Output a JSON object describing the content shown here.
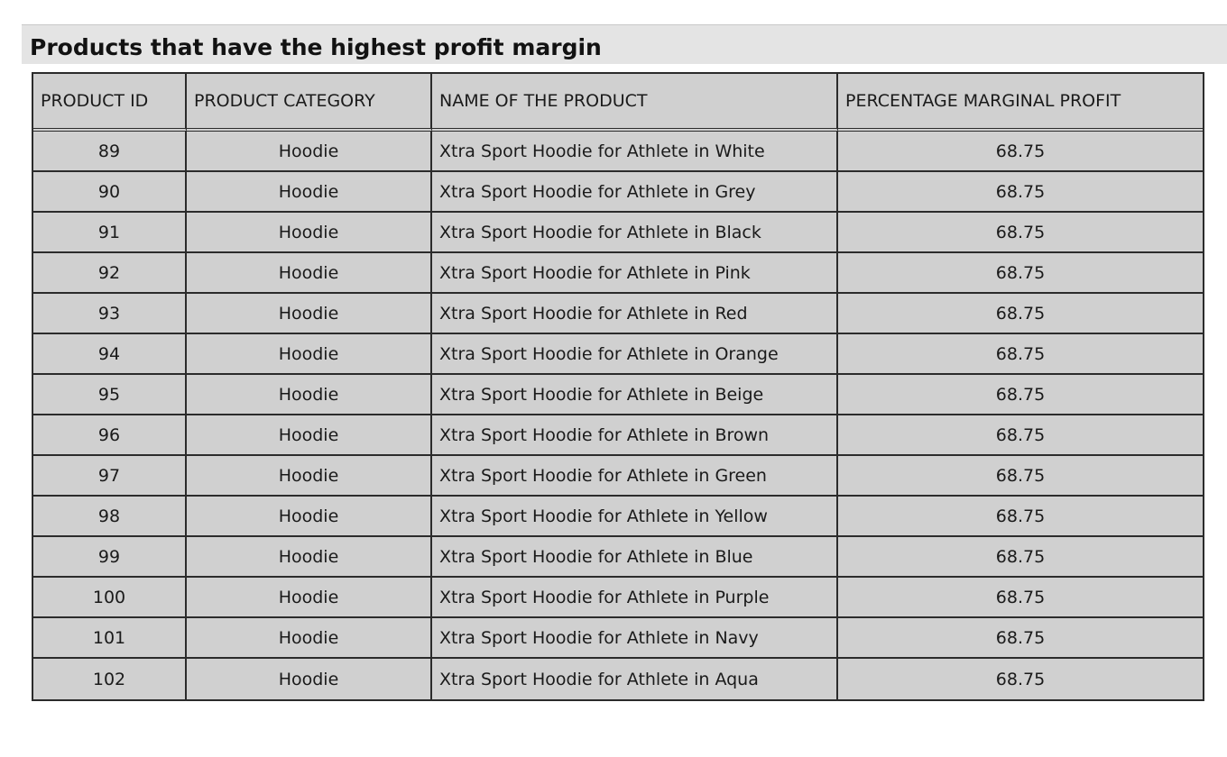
{
  "title": "Products that have the highest profit margin",
  "table": {
    "headers": [
      "PRODUCT ID",
      "PRODUCT CATEGORY",
      "NAME OF THE PRODUCT",
      "PERCENTAGE MARGINAL PROFIT"
    ],
    "rows": [
      [
        "89",
        "Hoodie",
        "Xtra Sport Hoodie for Athlete in White",
        "68.75"
      ],
      [
        "90",
        "Hoodie",
        "Xtra Sport Hoodie for Athlete in Grey",
        "68.75"
      ],
      [
        "91",
        "Hoodie",
        "Xtra Sport Hoodie for Athlete in Black",
        "68.75"
      ],
      [
        "92",
        "Hoodie",
        "Xtra Sport Hoodie for Athlete in Pink",
        "68.75"
      ],
      [
        "93",
        "Hoodie",
        "Xtra Sport Hoodie for Athlete in Red",
        "68.75"
      ],
      [
        "94",
        "Hoodie",
        "Xtra Sport Hoodie for Athlete in Orange",
        "68.75"
      ],
      [
        "95",
        "Hoodie",
        "Xtra Sport Hoodie for Athlete in Beige",
        "68.75"
      ],
      [
        "96",
        "Hoodie",
        "Xtra Sport Hoodie for Athlete in Brown",
        "68.75"
      ],
      [
        "97",
        "Hoodie",
        "Xtra Sport Hoodie for Athlete in Green",
        "68.75"
      ],
      [
        "98",
        "Hoodie",
        "Xtra Sport Hoodie for Athlete in Yellow",
        "68.75"
      ],
      [
        "99",
        "Hoodie",
        "Xtra Sport Hoodie for Athlete in Blue",
        "68.75"
      ],
      [
        "100",
        "Hoodie",
        "Xtra Sport Hoodie for Athlete in Purple",
        "68.75"
      ],
      [
        "101",
        "Hoodie",
        "Xtra Sport Hoodie for Athlete in Navy",
        "68.75"
      ],
      [
        "102",
        "Hoodie",
        "Xtra Sport Hoodie for Athlete in Aqua",
        "68.75"
      ]
    ]
  },
  "colors": {
    "title_bar_bg": "#e4e4e4",
    "cell_bg": "#d0d0d0",
    "border": "#2b2b2b"
  }
}
